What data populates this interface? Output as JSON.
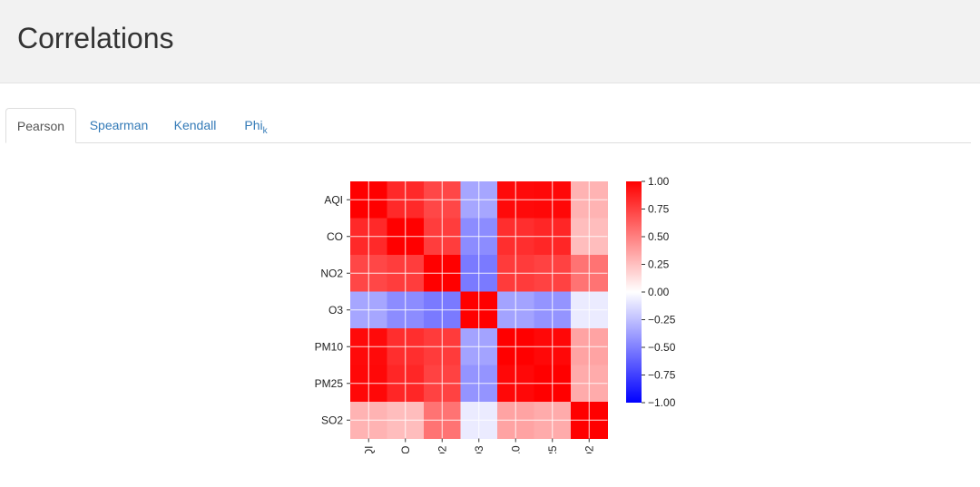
{
  "header": {
    "title": "Correlations"
  },
  "tabs": [
    {
      "label": "Pearson",
      "active": true
    },
    {
      "label": "Spearman",
      "active": false
    },
    {
      "label": "Kendall",
      "active": false
    },
    {
      "label": "Phi",
      "sub": "k",
      "active": false
    }
  ],
  "chart_data": {
    "type": "heatmap",
    "variables": [
      "AQI",
      "CO",
      "NO2",
      "O3",
      "PM10",
      "PM25",
      "SO2"
    ],
    "matrix": [
      [
        1.0,
        0.84,
        0.72,
        -0.35,
        0.96,
        0.97,
        0.3
      ],
      [
        0.84,
        1.0,
        0.76,
        -0.45,
        0.82,
        0.85,
        0.26
      ],
      [
        0.72,
        0.76,
        1.0,
        -0.52,
        0.77,
        0.74,
        0.55
      ],
      [
        -0.35,
        -0.45,
        -0.52,
        1.0,
        -0.36,
        -0.42,
        -0.08
      ],
      [
        0.96,
        0.82,
        0.77,
        -0.36,
        1.0,
        0.97,
        0.36
      ],
      [
        0.97,
        0.85,
        0.74,
        -0.42,
        0.97,
        1.0,
        0.33
      ],
      [
        0.3,
        0.26,
        0.55,
        -0.08,
        0.36,
        0.33,
        1.0
      ]
    ],
    "colorbar": {
      "min": -1.0,
      "max": 1.0,
      "ticks": [
        "1.00",
        "0.75",
        "0.50",
        "0.25",
        "0.00",
        "−0.25",
        "−0.50",
        "−0.75",
        "−1.00"
      ]
    },
    "colormap": {
      "low": "#0000ff",
      "mid": "#ffffff",
      "high": "#ff0000"
    }
  }
}
